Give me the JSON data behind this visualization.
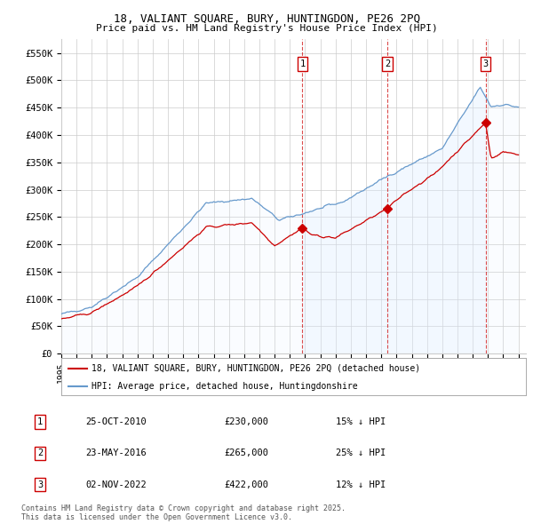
{
  "title_line1": "18, VALIANT SQUARE, BURY, HUNTINGDON, PE26 2PQ",
  "title_line2": "Price paid vs. HM Land Registry's House Price Index (HPI)",
  "xlim_start": 1995.0,
  "xlim_end": 2025.5,
  "ylim_min": 0,
  "ylim_max": 575000,
  "yticks": [
    0,
    50000,
    100000,
    150000,
    200000,
    250000,
    300000,
    350000,
    400000,
    450000,
    500000,
    550000
  ],
  "ytick_labels": [
    "£0",
    "£50K",
    "£100K",
    "£150K",
    "£200K",
    "£250K",
    "£300K",
    "£350K",
    "£400K",
    "£450K",
    "£500K",
    "£550K"
  ],
  "xticks": [
    1995,
    1996,
    1997,
    1998,
    1999,
    2000,
    2001,
    2002,
    2003,
    2004,
    2005,
    2006,
    2007,
    2008,
    2009,
    2010,
    2011,
    2012,
    2013,
    2014,
    2015,
    2016,
    2017,
    2018,
    2019,
    2020,
    2021,
    2022,
    2023,
    2024,
    2025
  ],
  "sale_dates": [
    2010.82,
    2016.39,
    2022.84
  ],
  "sale_prices": [
    230000,
    265000,
    422000
  ],
  "sale_labels": [
    "1",
    "2",
    "3"
  ],
  "legend_red": "18, VALIANT SQUARE, BURY, HUNTINGDON, PE26 2PQ (detached house)",
  "legend_blue": "HPI: Average price, detached house, Huntingdonshire",
  "table_data": [
    [
      "1",
      "25-OCT-2010",
      "£230,000",
      "15% ↓ HPI"
    ],
    [
      "2",
      "23-MAY-2016",
      "£265,000",
      "25% ↓ HPI"
    ],
    [
      "3",
      "02-NOV-2022",
      "£422,000",
      "12% ↓ HPI"
    ]
  ],
  "footnote": "Contains HM Land Registry data © Crown copyright and database right 2025.\nThis data is licensed under the Open Government Licence v3.0.",
  "red_color": "#cc0000",
  "blue_color": "#6699cc",
  "blue_fill_color": "#ddeeff",
  "grid_color": "#cccccc",
  "bg_color": "#ffffff"
}
